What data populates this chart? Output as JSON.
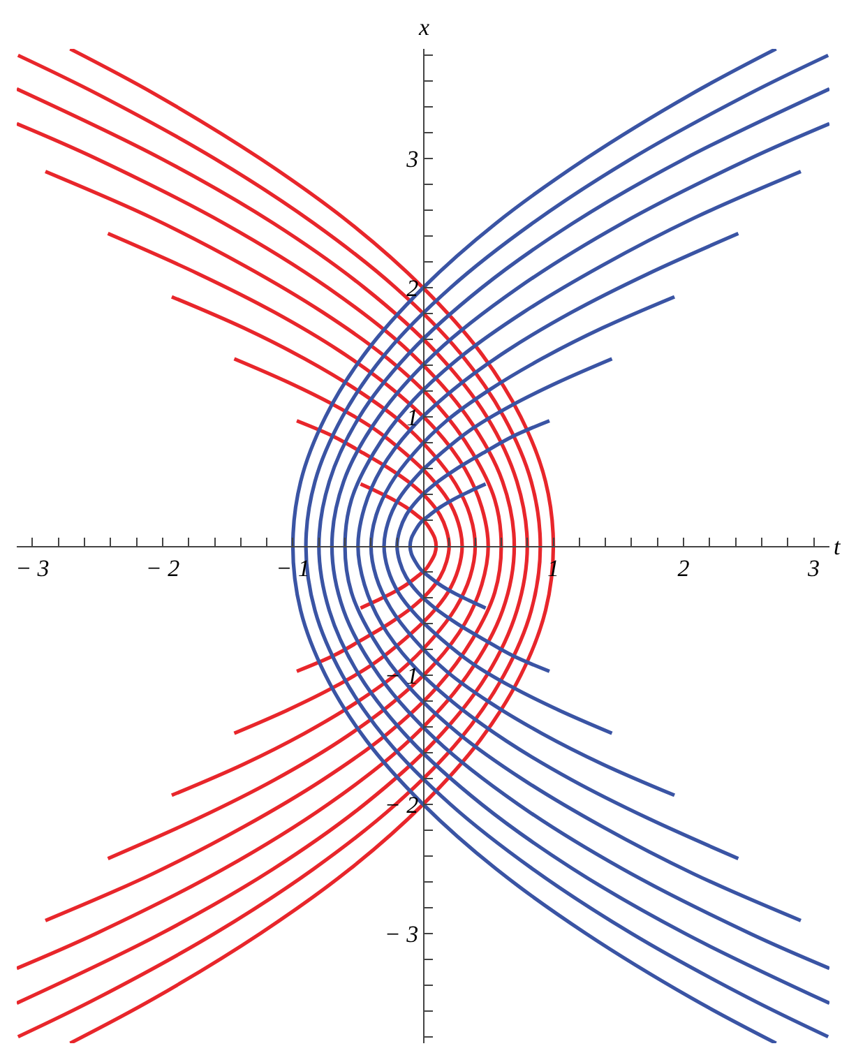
{
  "chart_data": {
    "type": "line",
    "xlabel": "t",
    "ylabel": "x",
    "xlim": [
      -3.12,
      3.12
    ],
    "ylim": [
      -3.85,
      3.85
    ],
    "xticks": [
      {
        "value": -3,
        "label": "− 3"
      },
      {
        "value": -2.8,
        "label": null
      },
      {
        "value": -2.6,
        "label": null
      },
      {
        "value": -2.4,
        "label": null
      },
      {
        "value": -2.2,
        "label": null
      },
      {
        "value": -2,
        "label": "− 2"
      },
      {
        "value": -1.8,
        "label": null
      },
      {
        "value": -1.6,
        "label": null
      },
      {
        "value": -1.4,
        "label": null
      },
      {
        "value": -1.2,
        "label": null
      },
      {
        "value": -1,
        "label": "− 1"
      },
      {
        "value": -0.8,
        "label": null
      },
      {
        "value": -0.6,
        "label": null
      },
      {
        "value": -0.4,
        "label": null
      },
      {
        "value": -0.2,
        "label": null
      },
      {
        "value": 0.2,
        "label": null
      },
      {
        "value": 0.4,
        "label": null
      },
      {
        "value": 0.6,
        "label": null
      },
      {
        "value": 0.8,
        "label": null
      },
      1,
      {
        "value": 1.2,
        "label": null
      },
      {
        "value": 1.4,
        "label": null
      },
      {
        "value": 1.6,
        "label": null
      },
      {
        "value": 1.8,
        "label": null
      },
      2,
      {
        "value": 2.2,
        "label": null
      },
      {
        "value": 2.4,
        "label": null
      },
      {
        "value": 2.6,
        "label": null
      },
      {
        "value": 2.8,
        "label": null
      },
      3
    ],
    "yticks": [
      {
        "value": -3.8,
        "label": null
      },
      {
        "value": -3.6,
        "label": null
      },
      {
        "value": -3.4,
        "label": null
      },
      {
        "value": -3.2,
        "label": null
      },
      {
        "value": -3,
        "label": "− 3"
      },
      {
        "value": -2.8,
        "label": null
      },
      {
        "value": -2.6,
        "label": null
      },
      {
        "value": -2.4,
        "label": null
      },
      {
        "value": -2.2,
        "label": null
      },
      {
        "value": -2,
        "label": "− 2"
      },
      {
        "value": -1.8,
        "label": null
      },
      {
        "value": -1.6,
        "label": null
      },
      {
        "value": -1.4,
        "label": null
      },
      {
        "value": -1.2,
        "label": null
      },
      {
        "value": -1,
        "label": "− 1"
      },
      {
        "value": -0.8,
        "label": null
      },
      {
        "value": -0.6,
        "label": null
      },
      {
        "value": -0.4,
        "label": null
      },
      {
        "value": -0.2,
        "label": null
      },
      {
        "value": 0.2,
        "label": null
      },
      {
        "value": 0.4,
        "label": null
      },
      {
        "value": 0.6,
        "label": null
      },
      {
        "value": 0.8,
        "label": null
      },
      1,
      {
        "value": 1.2,
        "label": null
      },
      {
        "value": 1.4,
        "label": null
      },
      {
        "value": 1.6,
        "label": null
      },
      {
        "value": 1.8,
        "label": null
      },
      2,
      {
        "value": 2.2,
        "label": null
      },
      {
        "value": 2.4,
        "label": null
      },
      {
        "value": 2.6,
        "label": null
      },
      {
        "value": 2.8,
        "label": null
      },
      3,
      {
        "value": 3.2,
        "label": null
      },
      {
        "value": 3.4,
        "label": null
      },
      {
        "value": 3.6,
        "label": null
      },
      {
        "value": 3.8,
        "label": null
      }
    ],
    "marker": "none",
    "line_style": "solid",
    "series": [
      {
        "color": "#e8262b",
        "x": [
          -0.48,
          -0.35,
          -0.23,
          -0.13,
          -0.05,
          0.02,
          0.06,
          0.09,
          0.1,
          0.09,
          0.06,
          0.02,
          -0.05,
          -0.13,
          -0.23,
          -0.35,
          -0.48
        ],
        "values": [
          0.48,
          0.42,
          0.36,
          0.3,
          0.24,
          0.18,
          0.12,
          0.06,
          0,
          -0.06,
          -0.12,
          -0.18,
          -0.24,
          -0.3,
          -0.36,
          -0.42,
          -0.48
        ]
      },
      {
        "color": "#e8262b",
        "x": [
          -0.97,
          -0.69,
          -0.46,
          -0.26,
          -0.09,
          0.04,
          0.13,
          0.18,
          0.2,
          0.18,
          0.13,
          0.04,
          -0.09,
          -0.26,
          -0.46,
          -0.69,
          -0.97
        ],
        "values": [
          0.97,
          0.85,
          0.72,
          0.6,
          0.48,
          0.36,
          0.24,
          0.12,
          0,
          -0.12,
          -0.24,
          -0.36,
          -0.48,
          -0.6,
          -0.72,
          -0.85,
          -0.97
        ]
      },
      {
        "color": "#e8262b",
        "x": [
          -1.45,
          -1.04,
          -0.68,
          -0.38,
          -0.14,
          0.05,
          0.19,
          0.27,
          0.3,
          0.27,
          0.19,
          0.05,
          -0.14,
          -0.38,
          -0.68,
          -1.04,
          -1.45
        ],
        "values": [
          1.45,
          1.27,
          1.09,
          0.91,
          0.72,
          0.54,
          0.36,
          0.18,
          0,
          -0.18,
          -0.36,
          -0.54,
          -0.72,
          -0.91,
          -1.09,
          -1.27,
          -1.45
        ]
      },
      {
        "color": "#e8262b",
        "x": [
          -1.93,
          -1.38,
          -0.91,
          -0.51,
          -0.18,
          0.07,
          0.25,
          0.36,
          0.4,
          0.36,
          0.25,
          0.07,
          -0.18,
          -0.51,
          -0.91,
          -1.38,
          -1.93
        ],
        "values": [
          1.93,
          1.69,
          1.45,
          1.21,
          0.97,
          0.72,
          0.48,
          0.24,
          0,
          -0.24,
          -0.48,
          -0.72,
          -0.97,
          -1.21,
          -1.45,
          -1.69,
          -1.93
        ]
      },
      {
        "color": "#e8262b",
        "x": [
          -2.42,
          -1.73,
          -1.14,
          -0.64,
          -0.23,
          0.09,
          0.32,
          0.45,
          0.5,
          0.45,
          0.32,
          0.09,
          -0.23,
          -0.64,
          -1.14,
          -1.73,
          -2.42
        ],
        "values": [
          2.42,
          2.11,
          1.81,
          1.51,
          1.21,
          0.91,
          0.6,
          0.3,
          0,
          -0.3,
          -0.6,
          -0.91,
          -1.21,
          -1.51,
          -1.81,
          -2.11,
          -2.42
        ]
      },
      {
        "color": "#e8262b",
        "x": [
          -2.9,
          -2.08,
          -1.37,
          -0.77,
          -0.27,
          0.11,
          0.38,
          0.55,
          0.6,
          0.55,
          0.38,
          0.11,
          -0.27,
          -0.77,
          -1.37,
          -2.08,
          -2.9
        ],
        "values": [
          2.9,
          2.54,
          2.17,
          1.81,
          1.45,
          1.09,
          0.72,
          0.36,
          0,
          -0.36,
          -0.72,
          -1.09,
          -1.45,
          -1.81,
          -2.17,
          -2.54,
          -2.9
        ]
      },
      {
        "color": "#e8262b",
        "x": [
          -3.12,
          -2.51,
          -1.53,
          -0.73,
          -0.1,
          0.34,
          0.61,
          0.7,
          0.61,
          0.34,
          -0.1,
          -0.73,
          -1.53,
          -2.51,
          -3.12
        ],
        "values": [
          3.27,
          3,
          2.5,
          2,
          1.5,
          1,
          0.5,
          0,
          -0.5,
          -1,
          -1.5,
          -2,
          -2.5,
          -3,
          -3.27
        ]
      },
      {
        "color": "#e8262b",
        "x": [
          -3.12,
          -2.01,
          -1.15,
          -0.45,
          0.1,
          0.49,
          0.72,
          0.8,
          0.72,
          0.49,
          0.1,
          -0.45,
          -1.15,
          -2.01,
          -3.12
        ],
        "values": [
          3.54,
          3,
          2.5,
          2,
          1.5,
          1,
          0.5,
          0,
          -0.5,
          -1,
          -1.5,
          -2,
          -2.5,
          -3,
          -3.54
        ]
      },
      {
        "color": "#e8262b",
        "x": [
          -3.11,
          -2.5,
          -1.6,
          -0.84,
          -0.21,
          0.28,
          0.62,
          0.83,
          0.9,
          0.83,
          0.62,
          0.28,
          -0.21,
          -0.84,
          -1.6,
          -2.5,
          -3.11
        ],
        "values": [
          3.8,
          3.5,
          3,
          2.5,
          2,
          1.5,
          1,
          0.5,
          0,
          -0.5,
          -1,
          -1.5,
          -2,
          -2.5,
          -3,
          -3.5,
          -3.8
        ]
      },
      {
        "color": "#e8262b",
        "x": [
          -2.71,
          -2.06,
          -1.25,
          -0.56,
          0,
          0.44,
          0.75,
          0.94,
          1,
          0.94,
          0.75,
          0.44,
          0,
          -0.56,
          -1.25,
          -2.06,
          -2.71
        ],
        "values": [
          3.85,
          3.5,
          3,
          2.5,
          2,
          1.5,
          1,
          0.5,
          0,
          -0.5,
          -1,
          -1.5,
          -2,
          -2.5,
          -3,
          -3.5,
          -3.85
        ]
      },
      {
        "color": "#3a54a4",
        "x": [
          0.48,
          0.35,
          0.23,
          0.13,
          0.05,
          -0.02,
          -0.06,
          -0.09,
          -0.1,
          -0.09,
          -0.06,
          -0.02,
          0.05,
          0.13,
          0.23,
          0.35,
          0.48
        ],
        "values": [
          0.48,
          0.42,
          0.36,
          0.3,
          0.24,
          0.18,
          0.12,
          0.06,
          0,
          -0.06,
          -0.12,
          -0.18,
          -0.24,
          -0.3,
          -0.36,
          -0.42,
          -0.48
        ]
      },
      {
        "color": "#3a54a4",
        "x": [
          0.97,
          0.69,
          0.46,
          0.26,
          0.09,
          -0.04,
          -0.13,
          -0.18,
          -0.2,
          -0.18,
          -0.13,
          -0.04,
          0.09,
          0.26,
          0.46,
          0.69,
          0.97
        ],
        "values": [
          0.97,
          0.85,
          0.72,
          0.6,
          0.48,
          0.36,
          0.24,
          0.12,
          0,
          -0.12,
          -0.24,
          -0.36,
          -0.48,
          -0.6,
          -0.72,
          -0.85,
          -0.97
        ]
      },
      {
        "color": "#3a54a4",
        "x": [
          1.45,
          1.04,
          0.68,
          0.38,
          0.14,
          -0.05,
          -0.19,
          -0.27,
          -0.3,
          -0.27,
          -0.19,
          -0.05,
          0.14,
          0.38,
          0.68,
          1.04,
          1.45
        ],
        "values": [
          1.45,
          1.27,
          1.09,
          0.91,
          0.72,
          0.54,
          0.36,
          0.18,
          0,
          -0.18,
          -0.36,
          -0.54,
          -0.72,
          -0.91,
          -1.09,
          -1.27,
          -1.45
        ]
      },
      {
        "color": "#3a54a4",
        "x": [
          1.93,
          1.38,
          0.91,
          0.51,
          0.18,
          -0.07,
          -0.25,
          -0.36,
          -0.4,
          -0.36,
          -0.25,
          -0.07,
          0.18,
          0.51,
          0.91,
          1.38,
          1.93
        ],
        "values": [
          1.93,
          1.69,
          1.45,
          1.21,
          0.97,
          0.72,
          0.48,
          0.24,
          0,
          -0.24,
          -0.48,
          -0.72,
          -0.97,
          -1.21,
          -1.45,
          -1.69,
          -1.93
        ]
      },
      {
        "color": "#3a54a4",
        "x": [
          2.42,
          1.73,
          1.14,
          0.64,
          0.23,
          -0.09,
          -0.32,
          -0.45,
          -0.5,
          -0.45,
          -0.32,
          -0.09,
          0.23,
          0.64,
          1.14,
          1.73,
          2.42
        ],
        "values": [
          2.42,
          2.11,
          1.81,
          1.51,
          1.21,
          0.91,
          0.6,
          0.3,
          0,
          -0.3,
          -0.6,
          -0.91,
          -1.21,
          -1.51,
          -1.81,
          -2.11,
          -2.42
        ]
      },
      {
        "color": "#3a54a4",
        "x": [
          2.9,
          2.08,
          1.37,
          0.77,
          0.27,
          -0.11,
          -0.38,
          -0.55,
          -0.6,
          -0.55,
          -0.38,
          -0.11,
          0.27,
          0.77,
          1.37,
          2.08,
          2.9
        ],
        "values": [
          2.9,
          2.54,
          2.17,
          1.81,
          1.45,
          1.09,
          0.72,
          0.36,
          0,
          -0.36,
          -0.72,
          -1.09,
          -1.45,
          -1.81,
          -2.17,
          -2.54,
          -2.9
        ]
      },
      {
        "color": "#3a54a4",
        "x": [
          3.12,
          2.51,
          1.53,
          0.73,
          0.1,
          -0.34,
          -0.61,
          -0.7,
          -0.61,
          -0.34,
          0.1,
          0.73,
          1.53,
          2.51,
          3.12
        ],
        "values": [
          3.27,
          3,
          2.5,
          2,
          1.5,
          1,
          0.5,
          0,
          -0.5,
          -1,
          -1.5,
          -2,
          -2.5,
          -3,
          -3.27
        ]
      },
      {
        "color": "#3a54a4",
        "x": [
          3.12,
          2.01,
          1.15,
          0.45,
          -0.1,
          -0.49,
          -0.72,
          -0.8,
          -0.72,
          -0.49,
          -0.1,
          0.45,
          1.15,
          2.01,
          3.12
        ],
        "values": [
          3.54,
          3,
          2.5,
          2,
          1.5,
          1,
          0.5,
          0,
          -0.5,
          -1,
          -1.5,
          -2,
          -2.5,
          -3,
          -3.54
        ]
      },
      {
        "color": "#3a54a4",
        "x": [
          3.11,
          2.5,
          1.6,
          0.84,
          0.21,
          -0.28,
          -0.62,
          -0.83,
          -0.9,
          -0.83,
          -0.62,
          -0.28,
          0.21,
          0.84,
          1.6,
          2.5,
          3.11
        ],
        "values": [
          3.8,
          3.5,
          3,
          2.5,
          2,
          1.5,
          1,
          0.5,
          0,
          -0.5,
          -1,
          -1.5,
          -2,
          -2.5,
          -3,
          -3.5,
          -3.8
        ]
      },
      {
        "color": "#3a54a4",
        "x": [
          2.71,
          2.06,
          1.25,
          0.56,
          0,
          -0.44,
          -0.75,
          -0.94,
          -1,
          -0.94,
          -0.75,
          -0.44,
          0,
          0.56,
          1.25,
          2.06,
          2.71
        ],
        "values": [
          3.85,
          3.5,
          3,
          2.5,
          2,
          1.5,
          1,
          0.5,
          0,
          -0.5,
          -1,
          -1.5,
          -2,
          -2.5,
          -3,
          -3.5,
          -3.85
        ]
      }
    ]
  }
}
